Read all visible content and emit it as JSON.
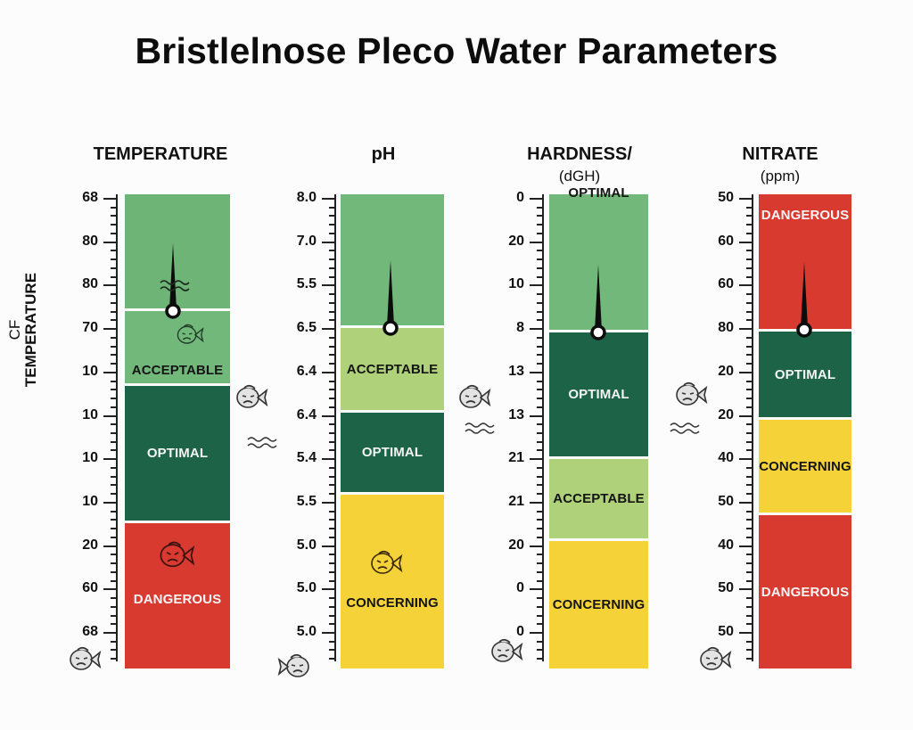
{
  "title": "Bristlelnose Pleco Water Parameters",
  "side_label": {
    "line1": "CF",
    "line2": "TEMPERATURE"
  },
  "colors": {
    "optimal_dark": "#1d6347",
    "optimal_light": "#6db476",
    "acceptable_green": "#72b87b",
    "acceptable_lime": "#aed17a",
    "concerning": "#f5d338",
    "dangerous": "#d93a30"
  },
  "chart_data": {
    "type": "gauge-scale",
    "title": "Bristlelnose Pleco Water Parameters",
    "ylabel": "CF TEMPERATURE",
    "gauges": [
      {
        "name": "TEMPERATURE",
        "unit": "",
        "tick_labels": [
          "68",
          "80",
          "80",
          "70",
          "10",
          "10",
          "10",
          "10",
          "20",
          "60",
          "68"
        ],
        "bands": [
          {
            "label": "",
            "color": "optimal_light"
          },
          {
            "label": "ACCEPTABLE",
            "color": "acceptable_green"
          },
          {
            "label": "OPTIMAL",
            "color": "optimal_dark"
          },
          {
            "label": "DANGEROUS",
            "color": "dangerous"
          }
        ],
        "needle_at_tick": "70"
      },
      {
        "name": "pH",
        "unit": "",
        "tick_labels": [
          "8.0",
          "7.0",
          "5.5",
          "6.5",
          "6.4",
          "6.4",
          "5.4",
          "5.5",
          "5.0",
          "5.0",
          "5.0"
        ],
        "bands": [
          {
            "label": "",
            "color": "acceptable_green"
          },
          {
            "label": "ACCEPTABLE",
            "color": "acceptable_lime"
          },
          {
            "label": "OPTIMAL",
            "color": "optimal_dark"
          },
          {
            "label": "CONCERNING",
            "color": "concerning"
          }
        ],
        "needle_at_tick": "6.5"
      },
      {
        "name": "HARDNESS/",
        "unit": "(dGH)",
        "tick_labels": [
          "0",
          "20",
          "10",
          "8",
          "13",
          "13",
          "21",
          "21",
          "20",
          "0",
          "0"
        ],
        "bands": [
          {
            "label": "OPTIMAL",
            "color": "acceptable_green"
          },
          {
            "label": "OPTIMAL",
            "color": "optimal_dark"
          },
          {
            "label": "ACCEPTABLE",
            "color": "acceptable_lime"
          },
          {
            "label": "CONCERNING",
            "color": "concerning"
          }
        ],
        "needle_at_tick": "8"
      },
      {
        "name": "NITRATE",
        "unit": "(ppm)",
        "tick_labels": [
          "50",
          "60",
          "60",
          "80",
          "20",
          "20",
          "40",
          "50",
          "40",
          "50",
          "50"
        ],
        "bands": [
          {
            "label": "DANGEROUS",
            "color": "dangerous"
          },
          {
            "label": "OPTIMAL",
            "color": "optimal_dark"
          },
          {
            "label": "CONCERNING",
            "color": "concerning"
          },
          {
            "label": "DANGEROUS",
            "color": "dangerous"
          }
        ],
        "needle_at_tick": "80"
      }
    ],
    "legend": [
      "OPTIMAL",
      "ACCEPTABLE",
      "CONCERNING",
      "DANGEROUS"
    ],
    "grid": false
  },
  "icons": {
    "fish": "sad-fish-icon",
    "waves": "water-waves-icon",
    "needle": "gauge-needle-icon"
  }
}
